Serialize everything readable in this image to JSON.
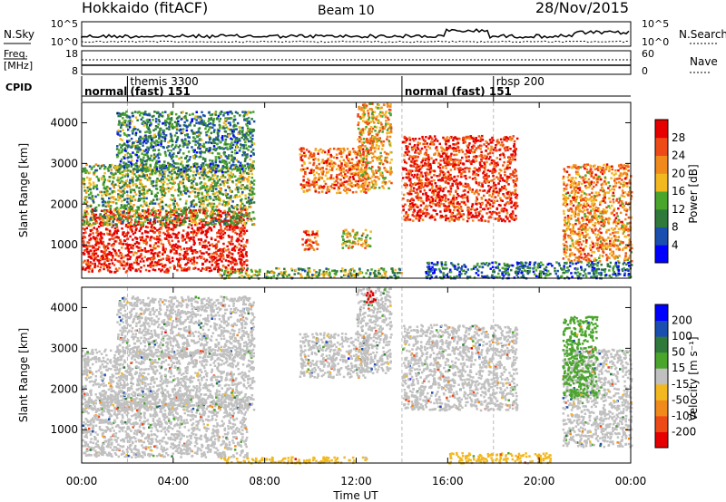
{
  "header": {
    "station": "Hokkaido (fitACF)",
    "beam": "Beam 10",
    "date": "28/Nov/2015"
  },
  "noise_panel": {
    "left_label": "N.Sky",
    "right_label": "N.Search",
    "left_ticks": [
      "10^5",
      "10^0"
    ],
    "right_ticks": [
      "10^5",
      "10^0"
    ],
    "right_legend_style": "dotted"
  },
  "freq_panel": {
    "left_label_lines": [
      "Freq.",
      "[MHz]"
    ],
    "right_label": "Nave",
    "left_ticks": [
      "18",
      "8"
    ],
    "right_ticks": [
      "60",
      "0"
    ],
    "right_legend_style": "dotted"
  },
  "cpid_panel": {
    "label": "CPID",
    "segments": [
      {
        "start": 0.0,
        "top": "",
        "bottom": "normal"
      },
      {
        "start": 2.0,
        "top": "themis 3300",
        "bottom": "(fast) 151"
      },
      {
        "start": 14.0,
        "top": "",
        "bottom": "normal (fast) 151"
      },
      {
        "start": 18.0,
        "top": "rbsp 200",
        "bottom": ""
      }
    ]
  },
  "chart_data": [
    {
      "type": "heatmap",
      "quantity": "Power",
      "ylabel": "Slant Range [km]",
      "x_range_hours": [
        0,
        24
      ],
      "ylim": [
        180,
        4500
      ],
      "y_ticks": [
        1000,
        2000,
        3000,
        4000
      ],
      "colorbar": {
        "label": "Power [dB]",
        "ticks": [
          "4",
          "8",
          "12",
          "16",
          "20",
          "24",
          "28"
        ],
        "range": [
          0,
          32
        ],
        "colors": [
          "#0000ff",
          "#1a4fb0",
          "#2f7a3a",
          "#4aa52c",
          "#f2b81f",
          "#f08a1c",
          "#ee4a18",
          "#e60000"
        ]
      },
      "echo_regions": [
        {
          "t0": 0.0,
          "t1": 7.2,
          "r0": 350,
          "r1": 1900,
          "level": 30
        },
        {
          "t0": 0.0,
          "t1": 7.5,
          "r0": 1500,
          "r1": 3000,
          "level": 14
        },
        {
          "t0": 1.5,
          "t1": 7.5,
          "r0": 2800,
          "r1": 4300,
          "level": 10
        },
        {
          "t0": 9.5,
          "t1": 12.5,
          "r0": 2300,
          "r1": 3400,
          "level": 24
        },
        {
          "t0": 9.6,
          "t1": 10.3,
          "r0": 900,
          "r1": 1400,
          "level": 26
        },
        {
          "t0": 11.3,
          "t1": 12.6,
          "r0": 950,
          "r1": 1400,
          "level": 18
        },
        {
          "t0": 12.0,
          "t1": 13.5,
          "r0": 2400,
          "r1": 4500,
          "level": 20
        },
        {
          "t0": 14.0,
          "t1": 19.0,
          "r0": 1600,
          "r1": 3700,
          "level": 28
        },
        {
          "t0": 21.0,
          "t1": 24.0,
          "r0": 600,
          "r1": 3000,
          "level": 22
        },
        {
          "t0": 6.0,
          "t1": 14.0,
          "r0": 200,
          "r1": 450,
          "level": 14
        },
        {
          "t0": 15.0,
          "t1": 24.0,
          "r0": 200,
          "r1": 600,
          "level": 8
        }
      ]
    },
    {
      "type": "heatmap",
      "quantity": "Velocity",
      "ylabel": "Slant Range [km]",
      "x_range_hours": [
        0,
        24
      ],
      "ylim": [
        180,
        4500
      ],
      "y_ticks": [
        1000,
        2000,
        3000,
        4000
      ],
      "x_ticks": [
        "00:00",
        "04:00",
        "08:00",
        "12:00",
        "16:00",
        "20:00",
        "00:00"
      ],
      "xlabel": "Time UT",
      "colorbar": {
        "label": "Velocity [m s⁻¹]",
        "ticks": [
          "-200",
          "-100",
          "-50",
          "-15",
          "15",
          "50",
          "100",
          "200"
        ],
        "range": [
          -250,
          250
        ],
        "colors": [
          "#e60000",
          "#ee4a18",
          "#f08a1c",
          "#f2b81f",
          "#c0c0c0",
          "#4aa52c",
          "#2f7a3a",
          "#1a4fb0",
          "#0000ff"
        ]
      },
      "echo_regions": [
        {
          "t0": 0.0,
          "t1": 7.2,
          "r0": 350,
          "r1": 1900,
          "level": 0
        },
        {
          "t0": 0.0,
          "t1": 7.5,
          "r0": 1500,
          "r1": 3000,
          "level": 0
        },
        {
          "t0": 1.5,
          "t1": 7.5,
          "r0": 2800,
          "r1": 4300,
          "level": 0
        },
        {
          "t0": 9.5,
          "t1": 12.5,
          "r0": 2300,
          "r1": 3400,
          "level": 0
        },
        {
          "t0": 12.0,
          "t1": 13.5,
          "r0": 2400,
          "r1": 4500,
          "level": 0
        },
        {
          "t0": 14.0,
          "t1": 19.0,
          "r0": 1500,
          "r1": 3600,
          "level": 0
        },
        {
          "t0": 21.0,
          "t1": 24.0,
          "r0": 600,
          "r1": 3000,
          "level": 0
        },
        {
          "t0": 21.0,
          "t1": 22.5,
          "r0": 1800,
          "r1": 3800,
          "level": 40
        },
        {
          "t0": 6.0,
          "t1": 12.5,
          "r0": 200,
          "r1": 350,
          "level": -60
        },
        {
          "t0": 16.0,
          "t1": 20.5,
          "r0": 200,
          "r1": 450,
          "level": -40
        },
        {
          "t0": 12.4,
          "t1": 12.8,
          "r0": 4150,
          "r1": 4450,
          "level": -220
        }
      ]
    }
  ]
}
